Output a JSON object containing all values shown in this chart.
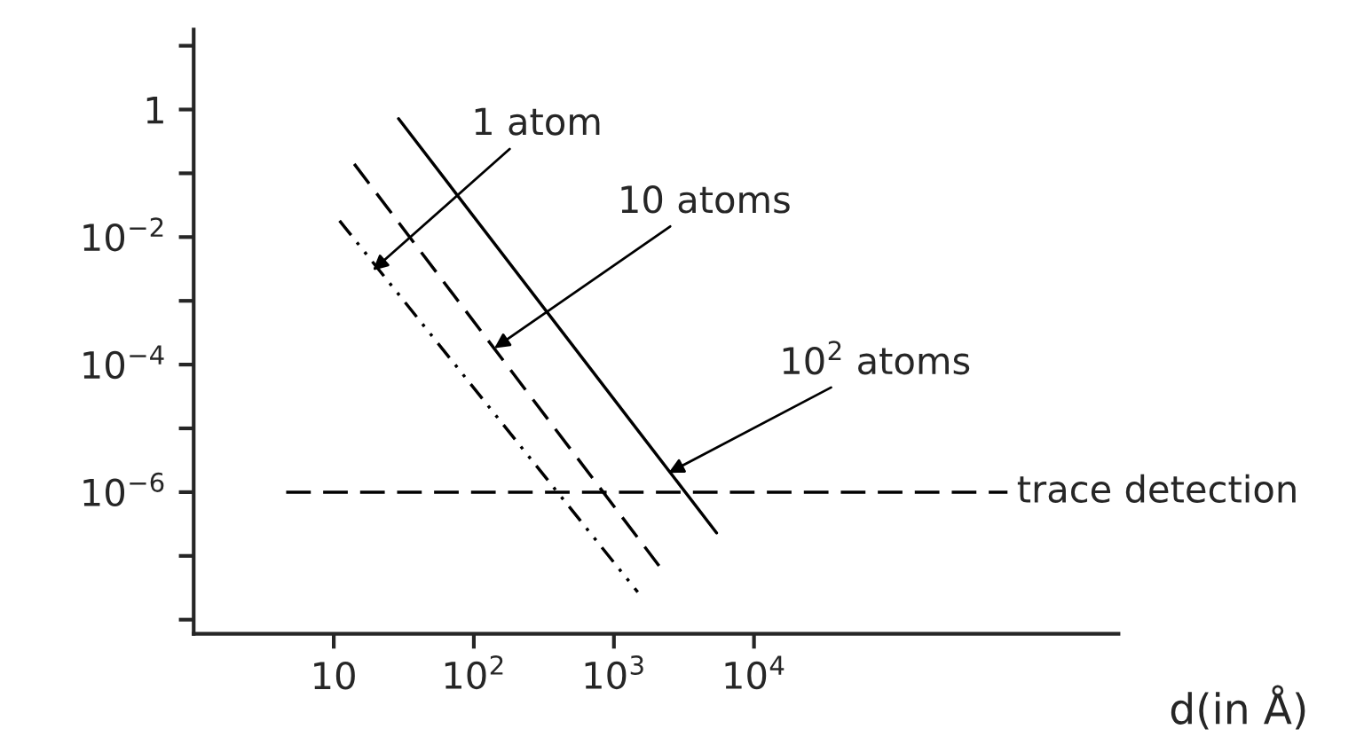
{
  "chart_data": {
    "type": "line",
    "log": "xy",
    "xlabel": "d(in Å)",
    "xlim": [
      1,
      4000000
    ],
    "ylim": [
      6e-09,
      18
    ],
    "xticks": [
      {
        "value": 10,
        "label": "10"
      },
      {
        "value": 100,
        "label": "10$^{2}$"
      },
      {
        "value": 1000,
        "label": "10$^{3}$"
      },
      {
        "value": 10000,
        "label": "10$^{4}$"
      }
    ],
    "yticks": [
      {
        "value": 1,
        "label": "1"
      },
      {
        "value": 0.01,
        "label": "10$^{−2}$"
      },
      {
        "value": 0.0001,
        "label": "10$^{−4}$"
      },
      {
        "value": 1e-06,
        "label": "10$^{−6}$"
      }
    ],
    "grid": false,
    "legend": false,
    "marker": "none",
    "series": [
      {
        "color": "#000000",
        "line_style": "dotted",
        "x": [
          11,
          1480
        ],
        "values": [
          0.018,
          2.7e-08
        ]
      },
      {
        "color": "#000000",
        "line_style": "dashed",
        "x": [
          14,
          2100
        ],
        "values": [
          0.14,
          7e-08
        ]
      },
      {
        "color": "#000000",
        "line_style": "solid",
        "x": [
          29,
          5400
        ],
        "values": [
          0.72,
          2.3e-07
        ]
      }
    ],
    "ref_lines": [
      {
        "axis": "y",
        "value": 1e-06,
        "label": "trace detection",
        "line_style": "dashed",
        "color": "#000000"
      }
    ],
    "annotations": [
      {
        "text": "1 atom",
        "x": 19,
        "y": 0.003
      },
      {
        "text": "10 atoms",
        "x": 140,
        "y": 0.00018
      },
      {
        "text": "10$^{2}$ atoms",
        "x": 2450,
        "y": 2e-06
      }
    ]
  }
}
